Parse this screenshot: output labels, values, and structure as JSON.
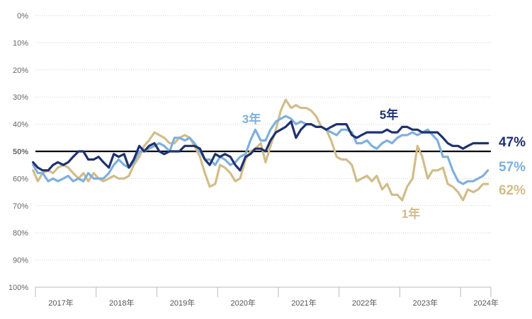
{
  "chart_data": {
    "type": "line",
    "title": "",
    "xlabel": "",
    "ylabel": "",
    "y_axis": {
      "range": [
        0,
        100
      ],
      "inverted": true,
      "tick_values": [
        0,
        10,
        20,
        30,
        40,
        50,
        60,
        70,
        80,
        90,
        100
      ],
      "tick_labels": [
        "0%",
        "10%",
        "20%",
        "30%",
        "40%",
        "50%",
        "60%",
        "70%",
        "80%",
        "90%",
        "100%"
      ],
      "grid": true,
      "highlight_tick": 50
    },
    "x_axis": {
      "range": [
        2017.0,
        2024.5
      ],
      "tick_values": [
        2017,
        2018,
        2019,
        2020,
        2021,
        2022,
        2023,
        2024
      ],
      "tick_labels": [
        "2017年",
        "2018年",
        "2019年",
        "2020年",
        "2021年",
        "2022年",
        "2023年",
        "2024年"
      ]
    },
    "reference_line": {
      "y": 50,
      "color": "#000000"
    },
    "series": [
      {
        "name": "1年",
        "end_label": "62%",
        "color": "#d1bd8a",
        "points": [
          [
            2016.96,
            57
          ],
          [
            2017.04,
            61
          ],
          [
            2017.12,
            58
          ],
          [
            2017.21,
            57
          ],
          [
            2017.29,
            58
          ],
          [
            2017.37,
            56
          ],
          [
            2017.46,
            55
          ],
          [
            2017.54,
            56
          ],
          [
            2017.62,
            58
          ],
          [
            2017.71,
            60
          ],
          [
            2017.79,
            58
          ],
          [
            2017.87,
            61
          ],
          [
            2017.96,
            58
          ],
          [
            2018.04,
            60
          ],
          [
            2018.12,
            61
          ],
          [
            2018.21,
            60
          ],
          [
            2018.29,
            59
          ],
          [
            2018.37,
            60
          ],
          [
            2018.46,
            60
          ],
          [
            2018.54,
            59
          ],
          [
            2018.62,
            55
          ],
          [
            2018.71,
            52
          ],
          [
            2018.79,
            48
          ],
          [
            2018.87,
            46
          ],
          [
            2018.96,
            43
          ],
          [
            2019.04,
            44
          ],
          [
            2019.12,
            45
          ],
          [
            2019.21,
            47
          ],
          [
            2019.29,
            47
          ],
          [
            2019.37,
            45
          ],
          [
            2019.46,
            44
          ],
          [
            2019.54,
            45
          ],
          [
            2019.62,
            48
          ],
          [
            2019.71,
            52
          ],
          [
            2019.79,
            58
          ],
          [
            2019.87,
            63
          ],
          [
            2019.96,
            62
          ],
          [
            2020.04,
            55
          ],
          [
            2020.12,
            56
          ],
          [
            2020.21,
            58
          ],
          [
            2020.29,
            61
          ],
          [
            2020.37,
            60
          ],
          [
            2020.46,
            53
          ],
          [
            2020.54,
            50
          ],
          [
            2020.62,
            49
          ],
          [
            2020.71,
            47
          ],
          [
            2020.79,
            54
          ],
          [
            2020.87,
            48
          ],
          [
            2020.96,
            42
          ],
          [
            2021.04,
            35
          ],
          [
            2021.12,
            31
          ],
          [
            2021.21,
            34
          ],
          [
            2021.29,
            33
          ],
          [
            2021.37,
            34
          ],
          [
            2021.46,
            34
          ],
          [
            2021.54,
            35
          ],
          [
            2021.62,
            37
          ],
          [
            2021.71,
            41
          ],
          [
            2021.79,
            42
          ],
          [
            2021.87,
            46
          ],
          [
            2021.96,
            52
          ],
          [
            2022.04,
            53
          ],
          [
            2022.12,
            53
          ],
          [
            2022.21,
            55
          ],
          [
            2022.29,
            61
          ],
          [
            2022.37,
            60
          ],
          [
            2022.46,
            59
          ],
          [
            2022.54,
            61
          ],
          [
            2022.62,
            59
          ],
          [
            2022.71,
            64
          ],
          [
            2022.79,
            62
          ],
          [
            2022.87,
            66
          ],
          [
            2022.96,
            66
          ],
          [
            2023.04,
            68
          ],
          [
            2023.12,
            63
          ],
          [
            2023.21,
            60
          ],
          [
            2023.29,
            48
          ],
          [
            2023.37,
            52
          ],
          [
            2023.46,
            60
          ],
          [
            2023.54,
            57
          ],
          [
            2023.62,
            57
          ],
          [
            2023.71,
            56
          ],
          [
            2023.79,
            62
          ],
          [
            2023.87,
            63
          ],
          [
            2023.96,
            65
          ],
          [
            2024.04,
            68
          ],
          [
            2024.12,
            64
          ],
          [
            2024.21,
            65
          ],
          [
            2024.29,
            64
          ],
          [
            2024.37,
            62
          ],
          [
            2024.45,
            62
          ]
        ]
      },
      {
        "name": "3年",
        "end_label": "57%",
        "color": "#7fafdc",
        "points": [
          [
            2016.96,
            55
          ],
          [
            2017.04,
            58
          ],
          [
            2017.12,
            58
          ],
          [
            2017.21,
            61
          ],
          [
            2017.29,
            60
          ],
          [
            2017.37,
            61
          ],
          [
            2017.46,
            60
          ],
          [
            2017.54,
            59
          ],
          [
            2017.62,
            61
          ],
          [
            2017.71,
            60
          ],
          [
            2017.79,
            61
          ],
          [
            2017.87,
            58
          ],
          [
            2017.96,
            60
          ],
          [
            2018.04,
            60
          ],
          [
            2018.12,
            60
          ],
          [
            2018.21,
            58
          ],
          [
            2018.29,
            55
          ],
          [
            2018.37,
            53
          ],
          [
            2018.46,
            55
          ],
          [
            2018.54,
            56
          ],
          [
            2018.62,
            54
          ],
          [
            2018.71,
            50
          ],
          [
            2018.79,
            50
          ],
          [
            2018.87,
            49
          ],
          [
            2018.96,
            48
          ],
          [
            2019.04,
            47
          ],
          [
            2019.12,
            48
          ],
          [
            2019.21,
            50
          ],
          [
            2019.29,
            45
          ],
          [
            2019.37,
            45
          ],
          [
            2019.46,
            46
          ],
          [
            2019.54,
            45
          ],
          [
            2019.62,
            47
          ],
          [
            2019.71,
            50
          ],
          [
            2019.79,
            53
          ],
          [
            2019.87,
            53
          ],
          [
            2019.96,
            55
          ],
          [
            2020.04,
            52
          ],
          [
            2020.12,
            53
          ],
          [
            2020.21,
            55
          ],
          [
            2020.29,
            54
          ],
          [
            2020.37,
            52
          ],
          [
            2020.46,
            51
          ],
          [
            2020.54,
            46
          ],
          [
            2020.62,
            42
          ],
          [
            2020.71,
            46
          ],
          [
            2020.79,
            46
          ],
          [
            2020.87,
            42
          ],
          [
            2020.96,
            39
          ],
          [
            2021.04,
            38
          ],
          [
            2021.12,
            37
          ],
          [
            2021.21,
            38
          ],
          [
            2021.29,
            40
          ],
          [
            2021.37,
            39
          ],
          [
            2021.46,
            40
          ],
          [
            2021.54,
            40
          ],
          [
            2021.62,
            41
          ],
          [
            2021.71,
            41
          ],
          [
            2021.79,
            42
          ],
          [
            2021.87,
            43
          ],
          [
            2021.96,
            44
          ],
          [
            2022.04,
            42
          ],
          [
            2022.12,
            42
          ],
          [
            2022.21,
            43
          ],
          [
            2022.29,
            47
          ],
          [
            2022.37,
            47
          ],
          [
            2022.46,
            46
          ],
          [
            2022.54,
            48
          ],
          [
            2022.62,
            49
          ],
          [
            2022.71,
            47
          ],
          [
            2022.79,
            46
          ],
          [
            2022.87,
            47
          ],
          [
            2022.96,
            45
          ],
          [
            2023.04,
            44
          ],
          [
            2023.12,
            44
          ],
          [
            2023.21,
            43
          ],
          [
            2023.29,
            44
          ],
          [
            2023.37,
            43
          ],
          [
            2023.46,
            42
          ],
          [
            2023.54,
            44
          ],
          [
            2023.62,
            46
          ],
          [
            2023.71,
            52
          ],
          [
            2023.79,
            52
          ],
          [
            2023.87,
            57
          ],
          [
            2023.96,
            61
          ],
          [
            2024.04,
            62
          ],
          [
            2024.12,
            61
          ],
          [
            2024.21,
            61
          ],
          [
            2024.29,
            60
          ],
          [
            2024.37,
            59
          ],
          [
            2024.45,
            57
          ]
        ]
      },
      {
        "name": "5年",
        "end_label": "47%",
        "color": "#1f3270",
        "points": [
          [
            2016.96,
            54
          ],
          [
            2017.04,
            56
          ],
          [
            2017.12,
            57
          ],
          [
            2017.21,
            57
          ],
          [
            2017.29,
            55
          ],
          [
            2017.37,
            54
          ],
          [
            2017.46,
            55
          ],
          [
            2017.54,
            54
          ],
          [
            2017.62,
            52
          ],
          [
            2017.71,
            50
          ],
          [
            2017.79,
            50
          ],
          [
            2017.87,
            53
          ],
          [
            2017.96,
            53
          ],
          [
            2018.04,
            52
          ],
          [
            2018.12,
            54
          ],
          [
            2018.21,
            56
          ],
          [
            2018.29,
            51
          ],
          [
            2018.37,
            52
          ],
          [
            2018.46,
            51
          ],
          [
            2018.54,
            56
          ],
          [
            2018.62,
            53
          ],
          [
            2018.71,
            48
          ],
          [
            2018.79,
            50
          ],
          [
            2018.87,
            48
          ],
          [
            2018.96,
            47
          ],
          [
            2019.04,
            50
          ],
          [
            2019.12,
            51
          ],
          [
            2019.21,
            50
          ],
          [
            2019.29,
            50
          ],
          [
            2019.37,
            50
          ],
          [
            2019.46,
            48
          ],
          [
            2019.54,
            48
          ],
          [
            2019.62,
            48
          ],
          [
            2019.71,
            49
          ],
          [
            2019.79,
            53
          ],
          [
            2019.87,
            55
          ],
          [
            2019.96,
            51
          ],
          [
            2020.04,
            52
          ],
          [
            2020.12,
            51
          ],
          [
            2020.21,
            52
          ],
          [
            2020.29,
            55
          ],
          [
            2020.37,
            57
          ],
          [
            2020.46,
            52
          ],
          [
            2020.54,
            51
          ],
          [
            2020.62,
            49
          ],
          [
            2020.71,
            49
          ],
          [
            2020.79,
            50
          ],
          [
            2020.87,
            46
          ],
          [
            2020.96,
            43
          ],
          [
            2021.04,
            42
          ],
          [
            2021.12,
            41
          ],
          [
            2021.21,
            39
          ],
          [
            2021.29,
            45
          ],
          [
            2021.37,
            42
          ],
          [
            2021.46,
            40
          ],
          [
            2021.54,
            40
          ],
          [
            2021.62,
            41
          ],
          [
            2021.71,
            41
          ],
          [
            2021.79,
            42
          ],
          [
            2021.87,
            41
          ],
          [
            2021.96,
            40
          ],
          [
            2022.04,
            40
          ],
          [
            2022.12,
            40
          ],
          [
            2022.21,
            44
          ],
          [
            2022.29,
            45
          ],
          [
            2022.37,
            44
          ],
          [
            2022.46,
            43
          ],
          [
            2022.54,
            43
          ],
          [
            2022.62,
            43
          ],
          [
            2022.71,
            43
          ],
          [
            2022.79,
            42
          ],
          [
            2022.87,
            43
          ],
          [
            2022.96,
            43
          ],
          [
            2023.04,
            41
          ],
          [
            2023.12,
            41
          ],
          [
            2023.21,
            42
          ],
          [
            2023.29,
            42
          ],
          [
            2023.37,
            43
          ],
          [
            2023.46,
            43
          ],
          [
            2023.54,
            43
          ],
          [
            2023.62,
            43
          ],
          [
            2023.71,
            45
          ],
          [
            2023.79,
            47
          ],
          [
            2023.87,
            48
          ],
          [
            2023.96,
            48
          ],
          [
            2024.04,
            49
          ],
          [
            2024.12,
            48
          ],
          [
            2024.21,
            47
          ],
          [
            2024.29,
            47
          ],
          [
            2024.37,
            47
          ],
          [
            2024.45,
            47
          ]
        ]
      }
    ]
  }
}
